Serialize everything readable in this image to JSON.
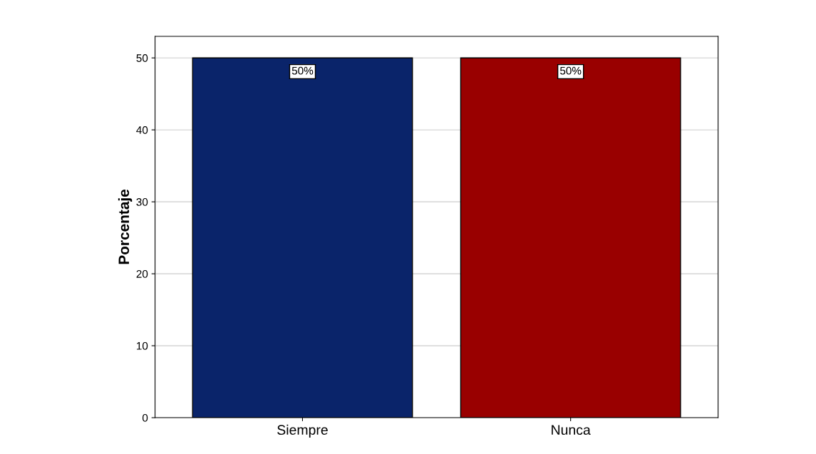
{
  "chart_data": {
    "type": "bar",
    "ylabel": "Porcentaje",
    "categories": [
      "Siempre",
      "Nunca"
    ],
    "values": [
      50,
      50
    ],
    "colors": [
      "#0a246a",
      "#990000"
    ],
    "value_labels": [
      "50%",
      "50%"
    ],
    "ylim": [
      0,
      53
    ],
    "yticks": [
      0,
      10,
      20,
      30,
      40,
      50
    ],
    "grid": "y"
  }
}
